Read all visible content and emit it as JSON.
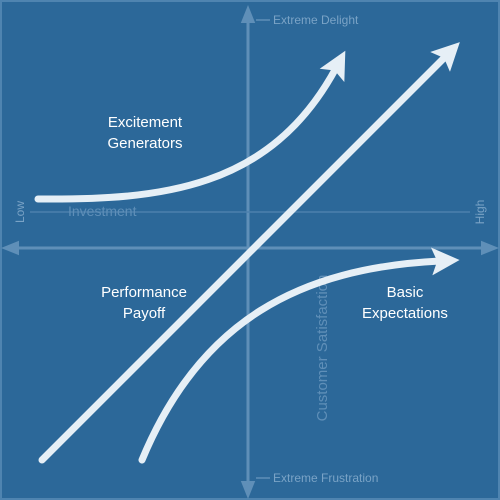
{
  "axes": {
    "top": "Extreme Delight",
    "bottom": "Extreme Frustration",
    "left": "Low",
    "right": "High",
    "horizontal": "Investment",
    "vertical": "Customer Satisfaction"
  },
  "curves": {
    "excitement": [
      "Excitement",
      "Generators"
    ],
    "performance": [
      "Performance",
      "Payoff"
    ],
    "basic": [
      "Basic",
      "Expectations"
    ]
  }
}
